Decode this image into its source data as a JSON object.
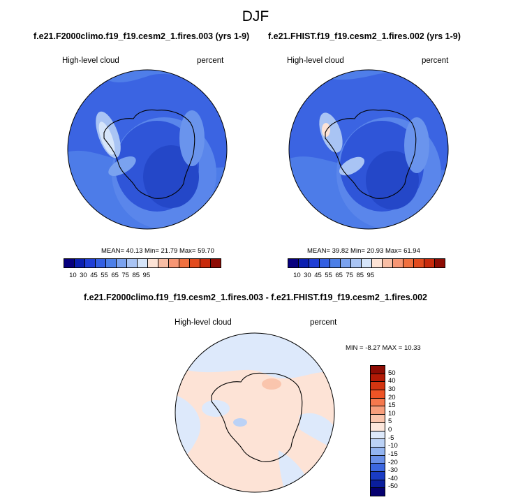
{
  "figure": {
    "title": "DJF",
    "diff_title": "f.e21.F2000climo.f19_f19.cesm2_1.fires.003 - f.e21.FHIST.f19_f19.cesm2_1.fires.002"
  },
  "panels": [
    {
      "title": "f.e21.F2000climo.f19_f19.cesm2_1.fires.003 (yrs 1-9)",
      "variable": "High-level cloud",
      "units": "percent",
      "stats": "MEAN=  40.13  Min=  21.79  Max=  59.70",
      "mean": 40.13,
      "min": 21.79,
      "max": 59.7
    },
    {
      "title": "f.e21.FHIST.f19_f19.cesm2_1.fires.002 (yrs 1-9)",
      "variable": "High-level cloud",
      "units": "percent",
      "stats": "MEAN=  39.82  Min=  20.93  Max=  61.94",
      "mean": 39.82,
      "min": 20.93,
      "max": 61.94
    },
    {
      "variable": "High-level cloud",
      "units": "percent",
      "stats": "MIN =  -8.27 MAX =  10.33",
      "min": -8.27,
      "max": 10.33
    }
  ],
  "colorbar_abs": {
    "labels": [
      "10",
      "30",
      "45",
      "55",
      "65",
      "75",
      "85",
      "95"
    ],
    "colors": [
      "#07007e",
      "#0b1fb0",
      "#1f3ed6",
      "#335fe3",
      "#4c7fe8",
      "#7aa2ef",
      "#a9c4f4",
      "#d6e5fa",
      "#fde3d6",
      "#f9bea5",
      "#f79674",
      "#f0703f",
      "#e24b1e",
      "#c82a0c",
      "#8e0c04"
    ]
  },
  "colorbar_diff": {
    "labels": [
      "50",
      "40",
      "30",
      "20",
      "15",
      "10",
      "5",
      "0",
      "-5",
      "-10",
      "-15",
      "-20",
      "-30",
      "-40",
      "-50"
    ],
    "colors": [
      "#8e0c04",
      "#b31a06",
      "#d33511",
      "#ee5426",
      "#f5784d",
      "#f79e7c",
      "#fac5ad",
      "#fde7dc",
      "#dde9fb",
      "#bbd2f6",
      "#93b4f0",
      "#6a90e8",
      "#3c67df",
      "#1a3cc4",
      "#0a1e9d",
      "#05006f"
    ]
  }
}
